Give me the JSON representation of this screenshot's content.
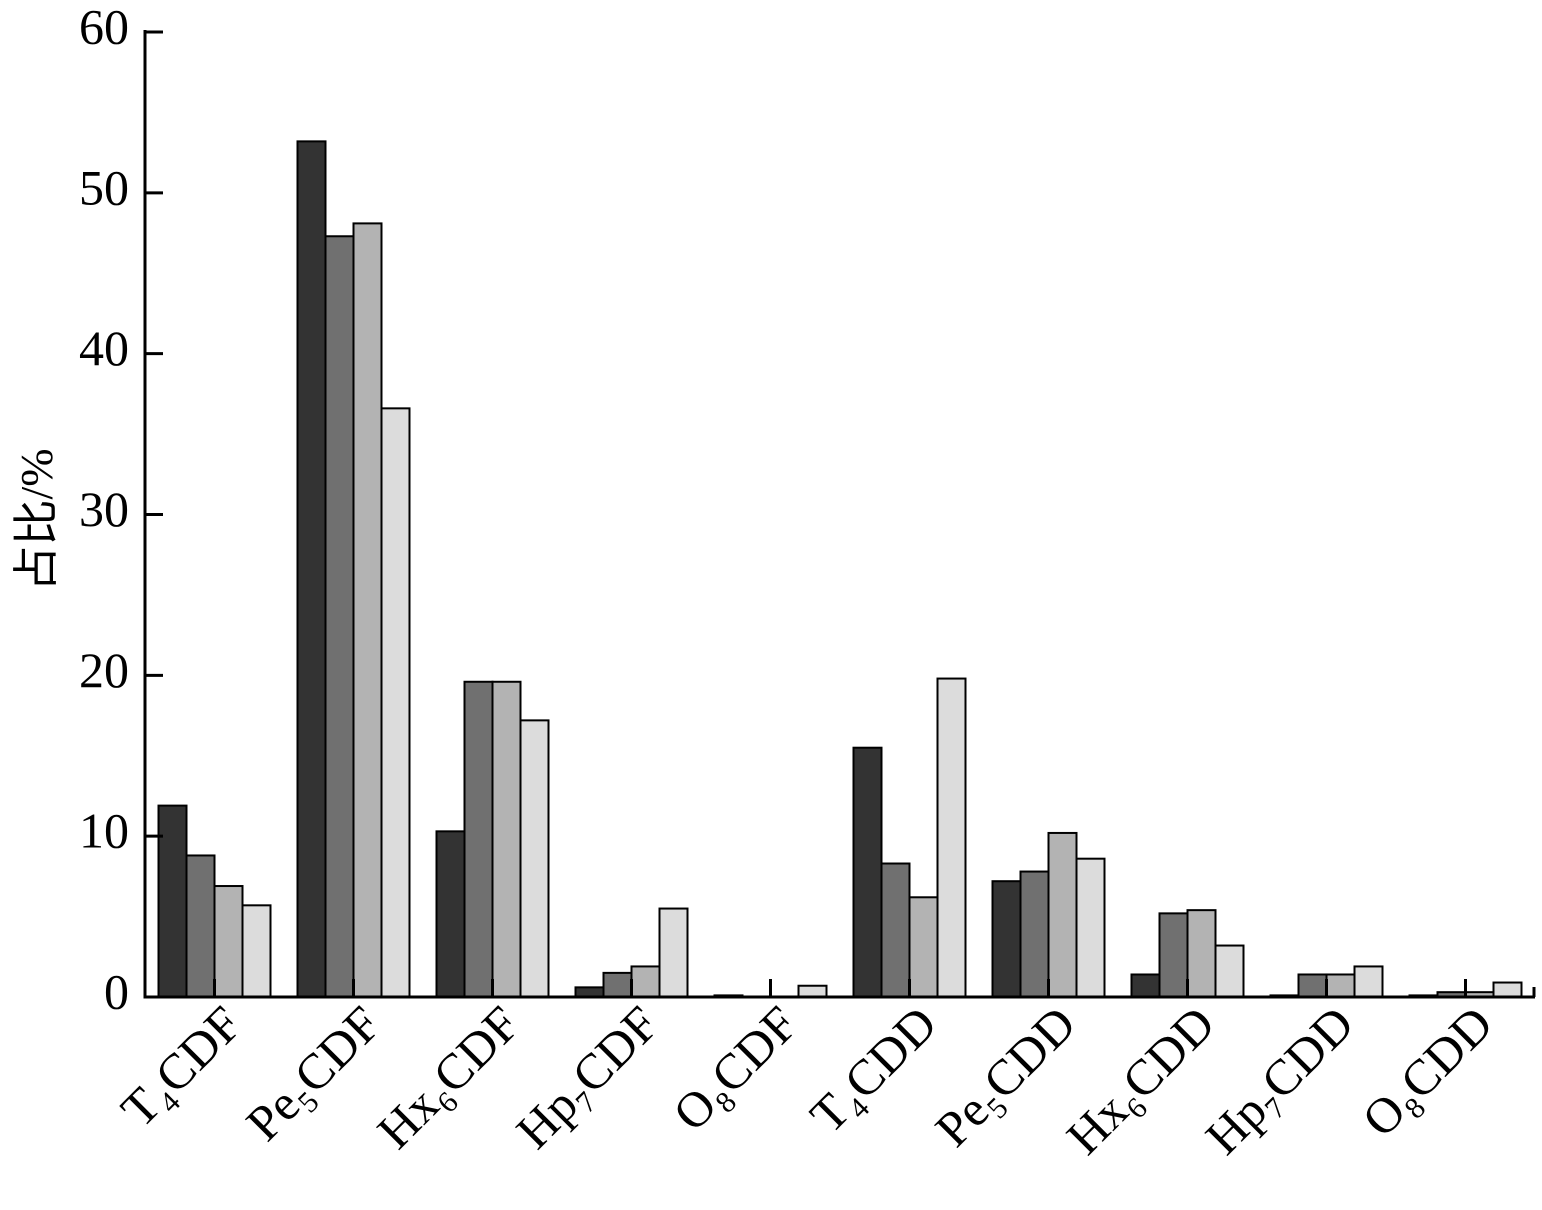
{
  "chart_data": {
    "type": "bar",
    "y_label": "占比/%",
    "categories": [
      "T₄CDF",
      "Pe₅CDF",
      "Hx₆CDF",
      "Hp₇CDF",
      "O₈CDF",
      "T₄CDD",
      "Pe₅CDD",
      "Hx₆CDD",
      "Hp₇CDD",
      "O₈CDD"
    ],
    "series": [
      {
        "color": "#333333",
        "values": [
          11.9,
          53.2,
          10.3,
          0.6,
          0.1,
          15.5,
          7.2,
          1.4,
          0.1,
          0.1
        ]
      },
      {
        "color": "#707070",
        "values": [
          8.8,
          47.3,
          19.6,
          1.5,
          0,
          8.3,
          7.8,
          5.2,
          1.4,
          0.3
        ]
      },
      {
        "color": "#b3b3b3",
        "values": [
          6.9,
          48.1,
          19.6,
          1.9,
          0,
          6.2,
          10.2,
          5.4,
          1.4,
          0.3
        ]
      },
      {
        "color": "#dcdcdc",
        "values": [
          5.7,
          36.6,
          17.2,
          5.5,
          0.7,
          19.8,
          8.6,
          3.2,
          1.9,
          0.9
        ]
      }
    ],
    "ylim": [
      0,
      60
    ],
    "yticks": [
      0,
      10,
      20,
      30,
      40,
      50,
      60
    ]
  }
}
